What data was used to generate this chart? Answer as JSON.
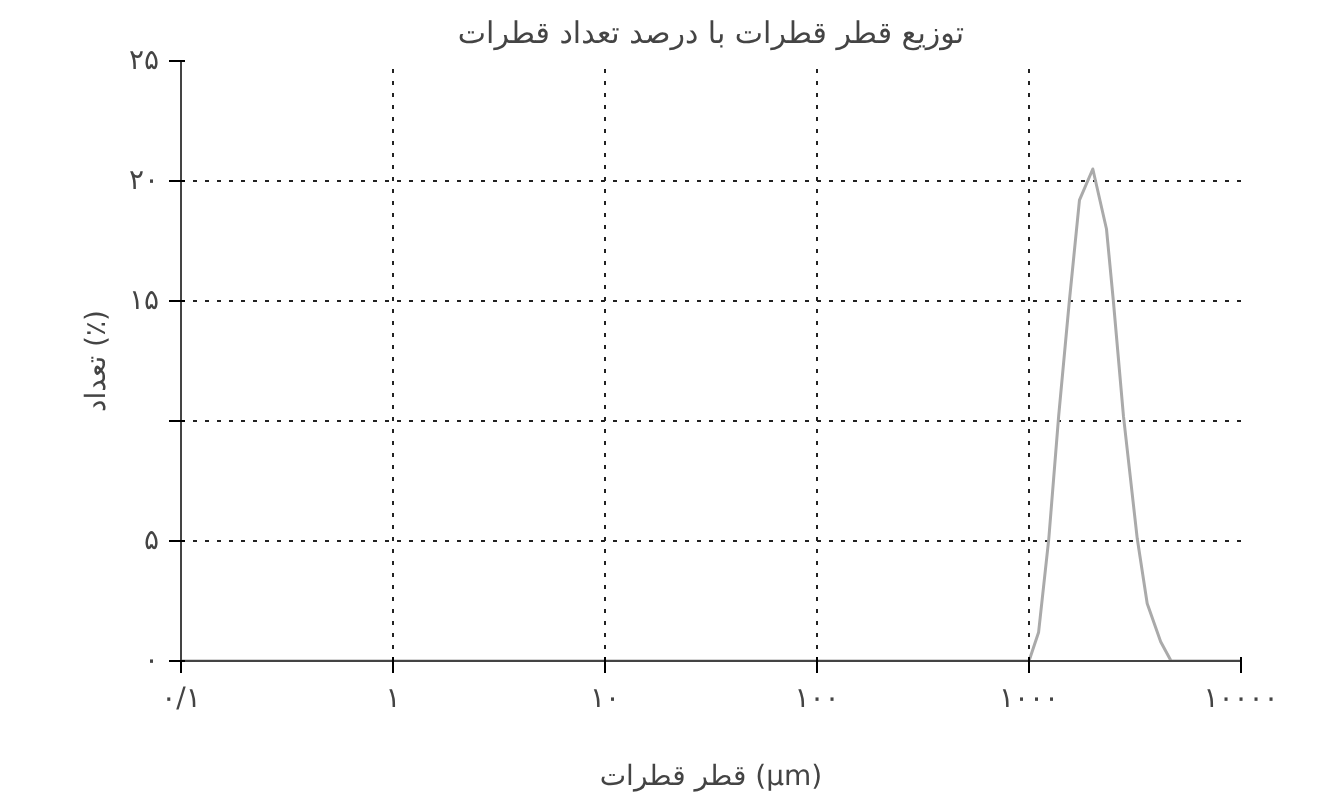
{
  "chart_data": {
    "type": "line",
    "title": "توزیع قطر قطرات با درصد تعداد قطرات",
    "xlabel": "قطر قطرات (μm)",
    "ylabel": "تعداد (٪)",
    "log": "x",
    "grid": true,
    "line_style": "solid",
    "xlim": [
      0.1,
      10000
    ],
    "ylim": [
      0,
      25
    ],
    "xticks": [
      {
        "value": 0.1,
        "label": "۰/۱"
      },
      {
        "value": 1,
        "label": "۱"
      },
      {
        "value": 10,
        "label": "۱۰"
      },
      {
        "value": 100,
        "label": "۱۰۰"
      },
      {
        "value": 1000,
        "label": "۱۰۰۰"
      },
      {
        "value": 10000,
        "label": "۱۰۰۰۰"
      }
    ],
    "yticks": [
      {
        "value": 0,
        "label": "۰"
      },
      {
        "value": 5,
        "label": "۵"
      },
      {
        "value": 10,
        "label": null
      },
      {
        "value": 15,
        "label": "۱۵"
      },
      {
        "value": 20,
        "label": "۲۰"
      },
      {
        "value": 25,
        "label": "۲۵"
      }
    ],
    "series": [
      {
        "color": "#aaaaaa",
        "x": [
          0.1,
          1000,
          1110,
          1240,
          1380,
          1550,
          1730,
          2000,
          2320,
          2500,
          2790,
          3240,
          3610,
          4180,
          4680,
          10000
        ],
        "values": [
          0,
          0,
          1.2,
          5.1,
          10.2,
          15,
          19.2,
          20.5,
          18,
          15,
          10.2,
          5.1,
          2.4,
          0.8,
          0,
          0
        ]
      }
    ]
  }
}
